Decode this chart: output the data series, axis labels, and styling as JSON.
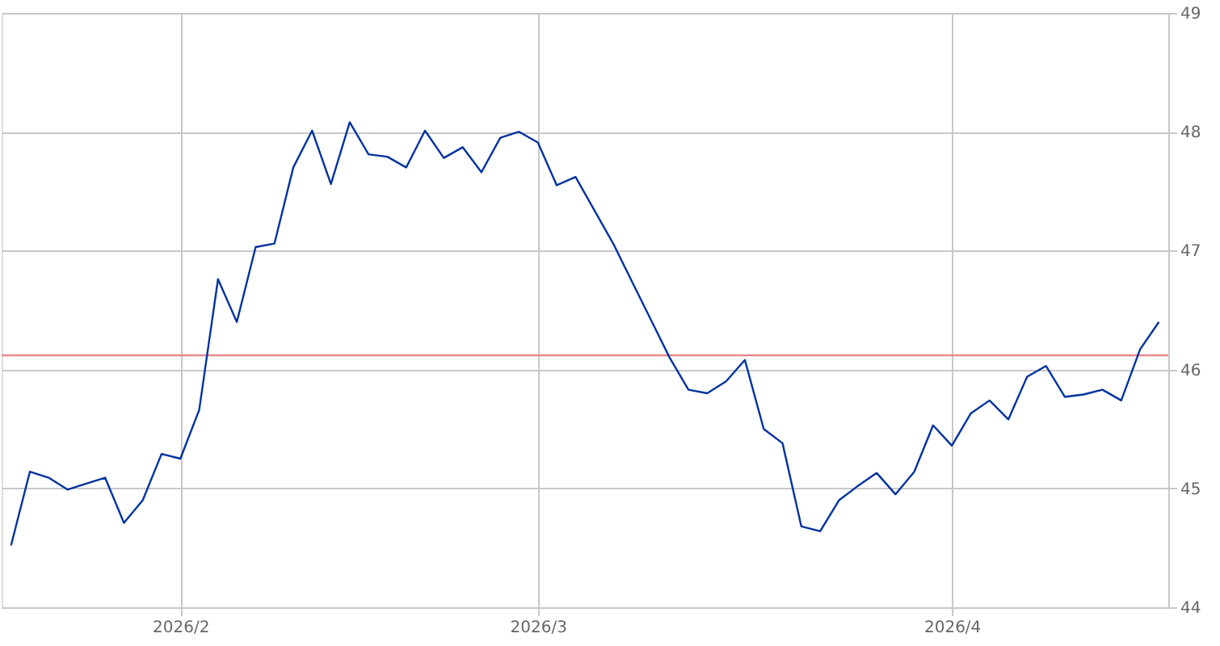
{
  "chart_data": {
    "type": "line",
    "categories": [
      null,
      null,
      null,
      null,
      null,
      null,
      null,
      null,
      null,
      "2026/2",
      null,
      null,
      null,
      null,
      null,
      null,
      null,
      null,
      null,
      null,
      null,
      null,
      null,
      null,
      null,
      null,
      null,
      null,
      "2026/3",
      null,
      null,
      null,
      null,
      null,
      null,
      null,
      null,
      null,
      null,
      null,
      null,
      null,
      null,
      null,
      null,
      null,
      null,
      null,
      null,
      null,
      "2026/4",
      null,
      null,
      null,
      null,
      null,
      null,
      null,
      null,
      null,
      null,
      null
    ],
    "series": [
      {
        "color": "#0033a0",
        "values": [
          44.52,
          45.14,
          45.09,
          44.99,
          45.04,
          45.09,
          44.71,
          44.9,
          45.29,
          45.25,
          45.66,
          46.76,
          46.4,
          47.03,
          47.06,
          47.7,
          48.01,
          47.56,
          48.08,
          47.81,
          47.79,
          47.7,
          48.01,
          47.78,
          47.87,
          47.66,
          47.95,
          48.0,
          47.91,
          47.55,
          47.62,
          47.34,
          47.06,
          46.74,
          46.42,
          46.1,
          45.83,
          45.8,
          45.9,
          46.08,
          45.5,
          45.38,
          44.68,
          44.64,
          44.9,
          45.02,
          45.13,
          44.95,
          45.14,
          45.53,
          45.36,
          45.63,
          45.74,
          45.58,
          45.94,
          46.03,
          45.77,
          45.79,
          45.83,
          45.74,
          46.17,
          46.4
        ]
      }
    ],
    "ylim": [
      44,
      49
    ],
    "yticks": [
      44,
      45,
      46,
      47,
      48,
      49
    ],
    "grid": true,
    "ref_lines": [
      {
        "axis": "y",
        "value": 46.12,
        "color": "#e88a8a"
      }
    ]
  }
}
